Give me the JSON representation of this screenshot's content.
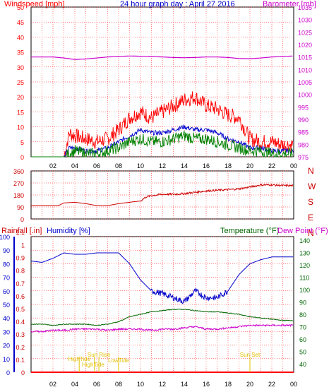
{
  "page_title": "24 hour graph day : April 27 2016",
  "colors": {
    "background": "#ffffff",
    "grid": "#ff0000",
    "wind_gust": "#ff0000",
    "wind_avg": "#0000cc",
    "wind_speed": "#008000",
    "barometer": "#cc00cc",
    "direction": "#cc0000",
    "humidity": "#0000cc",
    "temperature": "#006600",
    "dewpoint": "#cc00cc",
    "sun_marker": "#e0c000",
    "rain": "#ff0000",
    "axis_rain": "#ff0000",
    "axis_humidity": "#0000cc",
    "axis_temperature": "#008000"
  },
  "x_ticks": [
    "02",
    "04",
    "06",
    "08",
    "10",
    "12",
    "14",
    "16",
    "18",
    "20",
    "22",
    "00"
  ],
  "chart_data": [
    {
      "type": "line",
      "title": "24 hour graph day : April 27 2016",
      "left_axis_label": "Windspeed [mph]",
      "right_axis_label": "Barometer [mb]",
      "left_ticks": [
        "0",
        "5",
        "10",
        "15",
        "20",
        "25",
        "30",
        "35",
        "40",
        "45",
        "50"
      ],
      "right_ticks": [
        "975",
        "980",
        "985",
        "990",
        "995",
        "1000",
        "1005",
        "1010",
        "1015",
        "1020",
        "1025",
        "1030",
        "1035"
      ],
      "ylim_left": [
        0,
        50
      ],
      "ylim_right": [
        975,
        1035
      ],
      "x_hours": [
        0,
        1,
        2,
        3,
        3.5,
        4,
        5,
        6,
        7,
        8,
        9,
        10,
        11,
        12,
        13,
        14,
        15,
        16,
        17,
        18,
        19,
        20,
        21,
        22,
        23,
        24
      ],
      "series": {
        "gust": [
          0,
          0,
          0,
          0,
          8,
          7,
          6,
          5,
          6,
          9,
          13,
          15,
          13,
          15,
          17,
          19,
          20,
          17,
          16,
          14,
          13,
          6,
          5,
          5,
          4,
          4
        ],
        "average": [
          0,
          0,
          0,
          0,
          3,
          3,
          2,
          2,
          3,
          5,
          7,
          9,
          8,
          8,
          9,
          10,
          9,
          9,
          8,
          6,
          5,
          3,
          3,
          2,
          2,
          2
        ],
        "speed": [
          0,
          0,
          0,
          0,
          1,
          2,
          1,
          1,
          2,
          3,
          5,
          6,
          5,
          5,
          6,
          7,
          6,
          6,
          5,
          4,
          3,
          2,
          2,
          1,
          1,
          1
        ],
        "barometer": [
          1015,
          1015,
          1015,
          1014.6,
          1014.3,
          1014,
          1014.2,
          1014.6,
          1015,
          1015.2,
          1015.4,
          1015.3,
          1015.2,
          1015,
          1014.8,
          1014.7,
          1014.8,
          1015,
          1015,
          1014.8,
          1014.4,
          1014.3,
          1014.6,
          1015,
          1015.2,
          1015.4
        ]
      }
    },
    {
      "type": "line",
      "right_ticks": [
        "N",
        "W",
        "S",
        "E",
        "N"
      ],
      "left_ticks": [
        "0",
        "90",
        "180",
        "270",
        "360"
      ],
      "ylim": [
        0,
        360
      ],
      "x_hours": [
        0,
        2,
        2.5,
        3,
        4,
        5,
        6,
        7,
        8,
        9,
        10,
        10.5,
        11,
        12,
        13,
        14,
        15,
        16,
        17,
        18,
        19,
        20,
        21,
        22,
        23,
        24
      ],
      "direction": [
        100,
        100,
        100,
        120,
        125,
        115,
        100,
        100,
        115,
        125,
        135,
        165,
        175,
        185,
        185,
        190,
        200,
        210,
        215,
        220,
        225,
        240,
        255,
        255,
        250,
        250
      ]
    },
    {
      "type": "line",
      "rain_label": "Rainfall [.in]",
      "humidity_label": "Humidity [%]",
      "temperature_label": "Temperature (°F)",
      "dewpoint_label": "Dew Point (°F)",
      "rain_ticks": [
        "0",
        "0.1",
        "0.2",
        "0.3",
        "0.4",
        "0.5",
        "0.6",
        "0.7",
        "0.8",
        "0.9",
        "1",
        "1.1"
      ],
      "humidity_ticks": [
        "0",
        "10",
        "20",
        "30",
        "40",
        "50",
        "60",
        "70",
        "80",
        "90",
        "100"
      ],
      "temperature_ticks": [
        "40",
        "50",
        "60",
        "70",
        "80",
        "90",
        "100",
        "110",
        "120",
        "130",
        "140"
      ],
      "ylim_humidity": [
        0,
        100
      ],
      "ylim_temperature": [
        33,
        143
      ],
      "x_hours": [
        0,
        1,
        2,
        3,
        4,
        5,
        6,
        7,
        8,
        9,
        10,
        11,
        12,
        13,
        14,
        15,
        16,
        17,
        18,
        19,
        20,
        21,
        22,
        23,
        24
      ],
      "humidity": [
        82,
        81,
        84,
        88,
        87,
        87,
        88,
        88,
        88,
        80,
        68,
        60,
        58,
        55,
        52,
        60,
        55,
        55,
        60,
        72,
        80,
        83,
        85,
        85,
        85
      ],
      "temperature": [
        72,
        72,
        71,
        72,
        72,
        72,
        71,
        72,
        74,
        78,
        80,
        82,
        83,
        84,
        84,
        83,
        82,
        82,
        81,
        80,
        78,
        77,
        76,
        75,
        75
      ],
      "dewpoint": [
        66,
        66,
        67,
        67,
        68,
        68,
        68,
        67,
        68,
        68,
        68,
        67,
        68,
        68,
        69,
        70,
        68,
        68,
        69,
        70,
        71,
        71,
        71,
        71,
        71
      ],
      "rain": [
        0,
        0,
        0,
        0,
        0,
        0,
        0,
        0,
        0,
        0,
        0,
        0,
        0,
        0,
        0,
        0,
        0,
        0,
        0,
        0,
        0,
        0,
        0,
        0,
        0
      ],
      "annotations": [
        {
          "label": "HighTide",
          "hour": 5.8
        },
        {
          "label": "Sun Rise",
          "hour": 6.2
        },
        {
          "label": "LowTide",
          "hour": 8.0
        },
        {
          "label": "Sun Set",
          "hour": 20.0
        },
        {
          "label": "HighTide",
          "hour": 4.4
        }
      ]
    }
  ]
}
